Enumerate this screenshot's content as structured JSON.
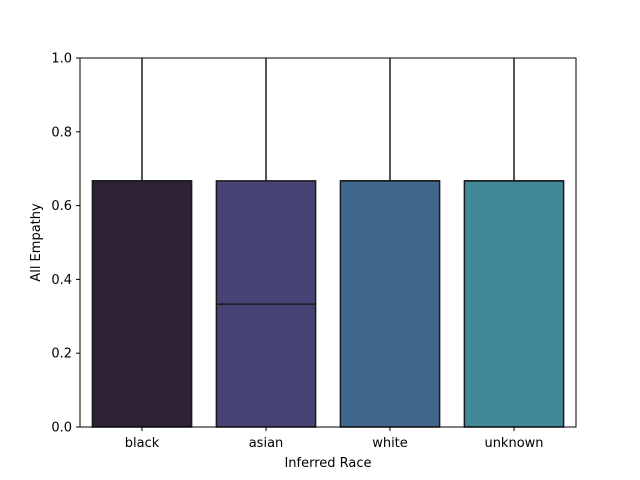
{
  "chart_data": {
    "type": "box",
    "title": "",
    "xlabel": "Inferred Race",
    "ylabel": "All Empathy",
    "ylim": [
      0,
      1.0
    ],
    "yticks": [
      "0.0",
      "0.2",
      "0.4",
      "0.6",
      "0.8",
      "1.0"
    ],
    "categories": [
      "black",
      "asian",
      "white",
      "unknown"
    ],
    "colors": [
      "#2e2236",
      "#464475",
      "#42678f",
      "#41889a"
    ],
    "boxes": [
      {
        "category": "black",
        "q1": 0.0,
        "median": 0.667,
        "q3": 0.667,
        "whisker_low": 0.0,
        "whisker_high": 1.0
      },
      {
        "category": "asian",
        "q1": 0.0,
        "median": 0.333,
        "q3": 0.667,
        "whisker_low": 0.0,
        "whisker_high": 1.0
      },
      {
        "category": "white",
        "q1": 0.0,
        "median": 0.667,
        "q3": 0.667,
        "whisker_low": 0.0,
        "whisker_high": 1.0
      },
      {
        "category": "unknown",
        "q1": 0.0,
        "median": 0.667,
        "q3": 0.667,
        "whisker_low": 0.0,
        "whisker_high": 1.0
      }
    ],
    "grid": false,
    "legend": "none"
  }
}
